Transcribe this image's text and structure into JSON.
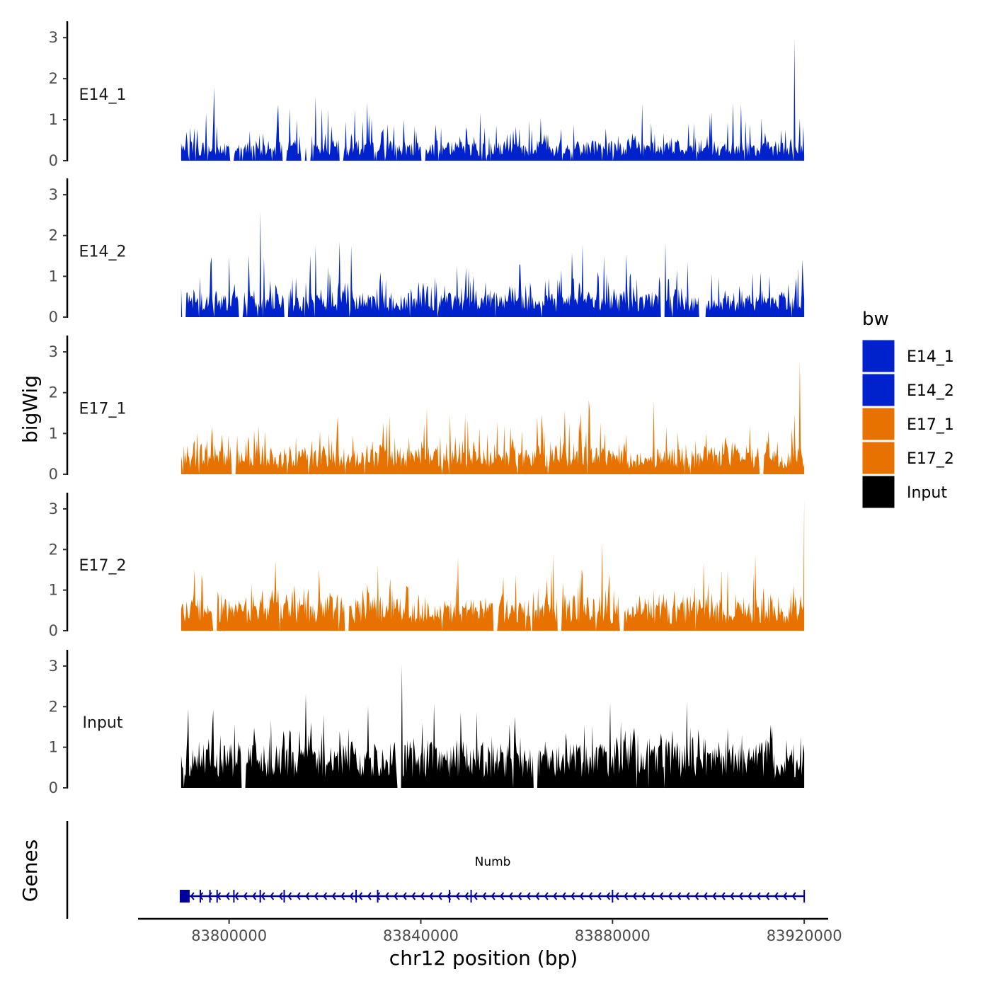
{
  "chart_data": {
    "type": "area",
    "title": "",
    "xlabel": "chr12 position (bp)",
    "ylabel_tracks": "bigWig",
    "ylabel_genes": "Genes",
    "xlim": [
      83781000,
      83925000
    ],
    "data_start": 83790000,
    "data_end": 83920000,
    "ylim": [
      0,
      3.4
    ],
    "yticks": [
      0,
      1,
      2,
      3
    ],
    "ytick_labels": [
      "0",
      "1",
      "2",
      "3"
    ],
    "xticks": [
      83800000,
      83840000,
      83880000,
      83920000
    ],
    "xtick_labels": [
      "83800000",
      "83840000",
      "83880000",
      "83920000"
    ],
    "legend_title": "bw",
    "tracks": [
      {
        "name": "E14_1",
        "color": "#0022CC",
        "baseline": 0.35,
        "spikiness": 0.9,
        "peak": 2.95,
        "peak_at": 83918000,
        "gaps": [
          83800500,
          83811500,
          83815500,
          83816500,
          83823500,
          83840500
        ]
      },
      {
        "name": "E14_2",
        "color": "#0022CC",
        "baseline": 0.45,
        "spikiness": 0.95,
        "peak": 2.6,
        "peak_at": 83806500,
        "gaps": [
          83790500,
          83802500,
          83812000,
          83890500,
          83898500,
          83899000
        ]
      },
      {
        "name": "E17_1",
        "color": "#E87200",
        "baseline": 0.5,
        "spikiness": 0.9,
        "peak": 2.8,
        "peak_at": 83919000,
        "gaps": [
          83801000,
          83911000
        ]
      },
      {
        "name": "E17_2",
        "color": "#E87200",
        "baseline": 0.6,
        "spikiness": 0.95,
        "peak": 3.25,
        "peak_at": 83920000,
        "gaps": [
          83797000,
          83824500,
          83855500,
          83869000,
          83882000
        ]
      },
      {
        "name": "Input",
        "color": "#000000",
        "baseline": 0.85,
        "spikiness": 0.85,
        "peak": 3.05,
        "peak_at": 83836000,
        "gaps": [
          83803000,
          83835500,
          83864000
        ]
      }
    ],
    "legend": [
      {
        "label": "E14_1",
        "color": "#0022CC"
      },
      {
        "label": "E14_2",
        "color": "#0022CC"
      },
      {
        "label": "E17_1",
        "color": "#E87200"
      },
      {
        "label": "E17_2",
        "color": "#E87200"
      },
      {
        "label": "Input",
        "color": "#000000"
      }
    ],
    "gene": {
      "name": "Numb",
      "start": 83790000,
      "end": 83920000,
      "strand": "-",
      "color": "#000099",
      "exons": [
        83790000,
        83791500,
        83794000,
        83796000,
        83797500,
        83801000,
        83806500,
        83811500,
        83826500,
        83831000,
        83846000,
        83850500,
        83880000,
        83920000
      ]
    }
  }
}
